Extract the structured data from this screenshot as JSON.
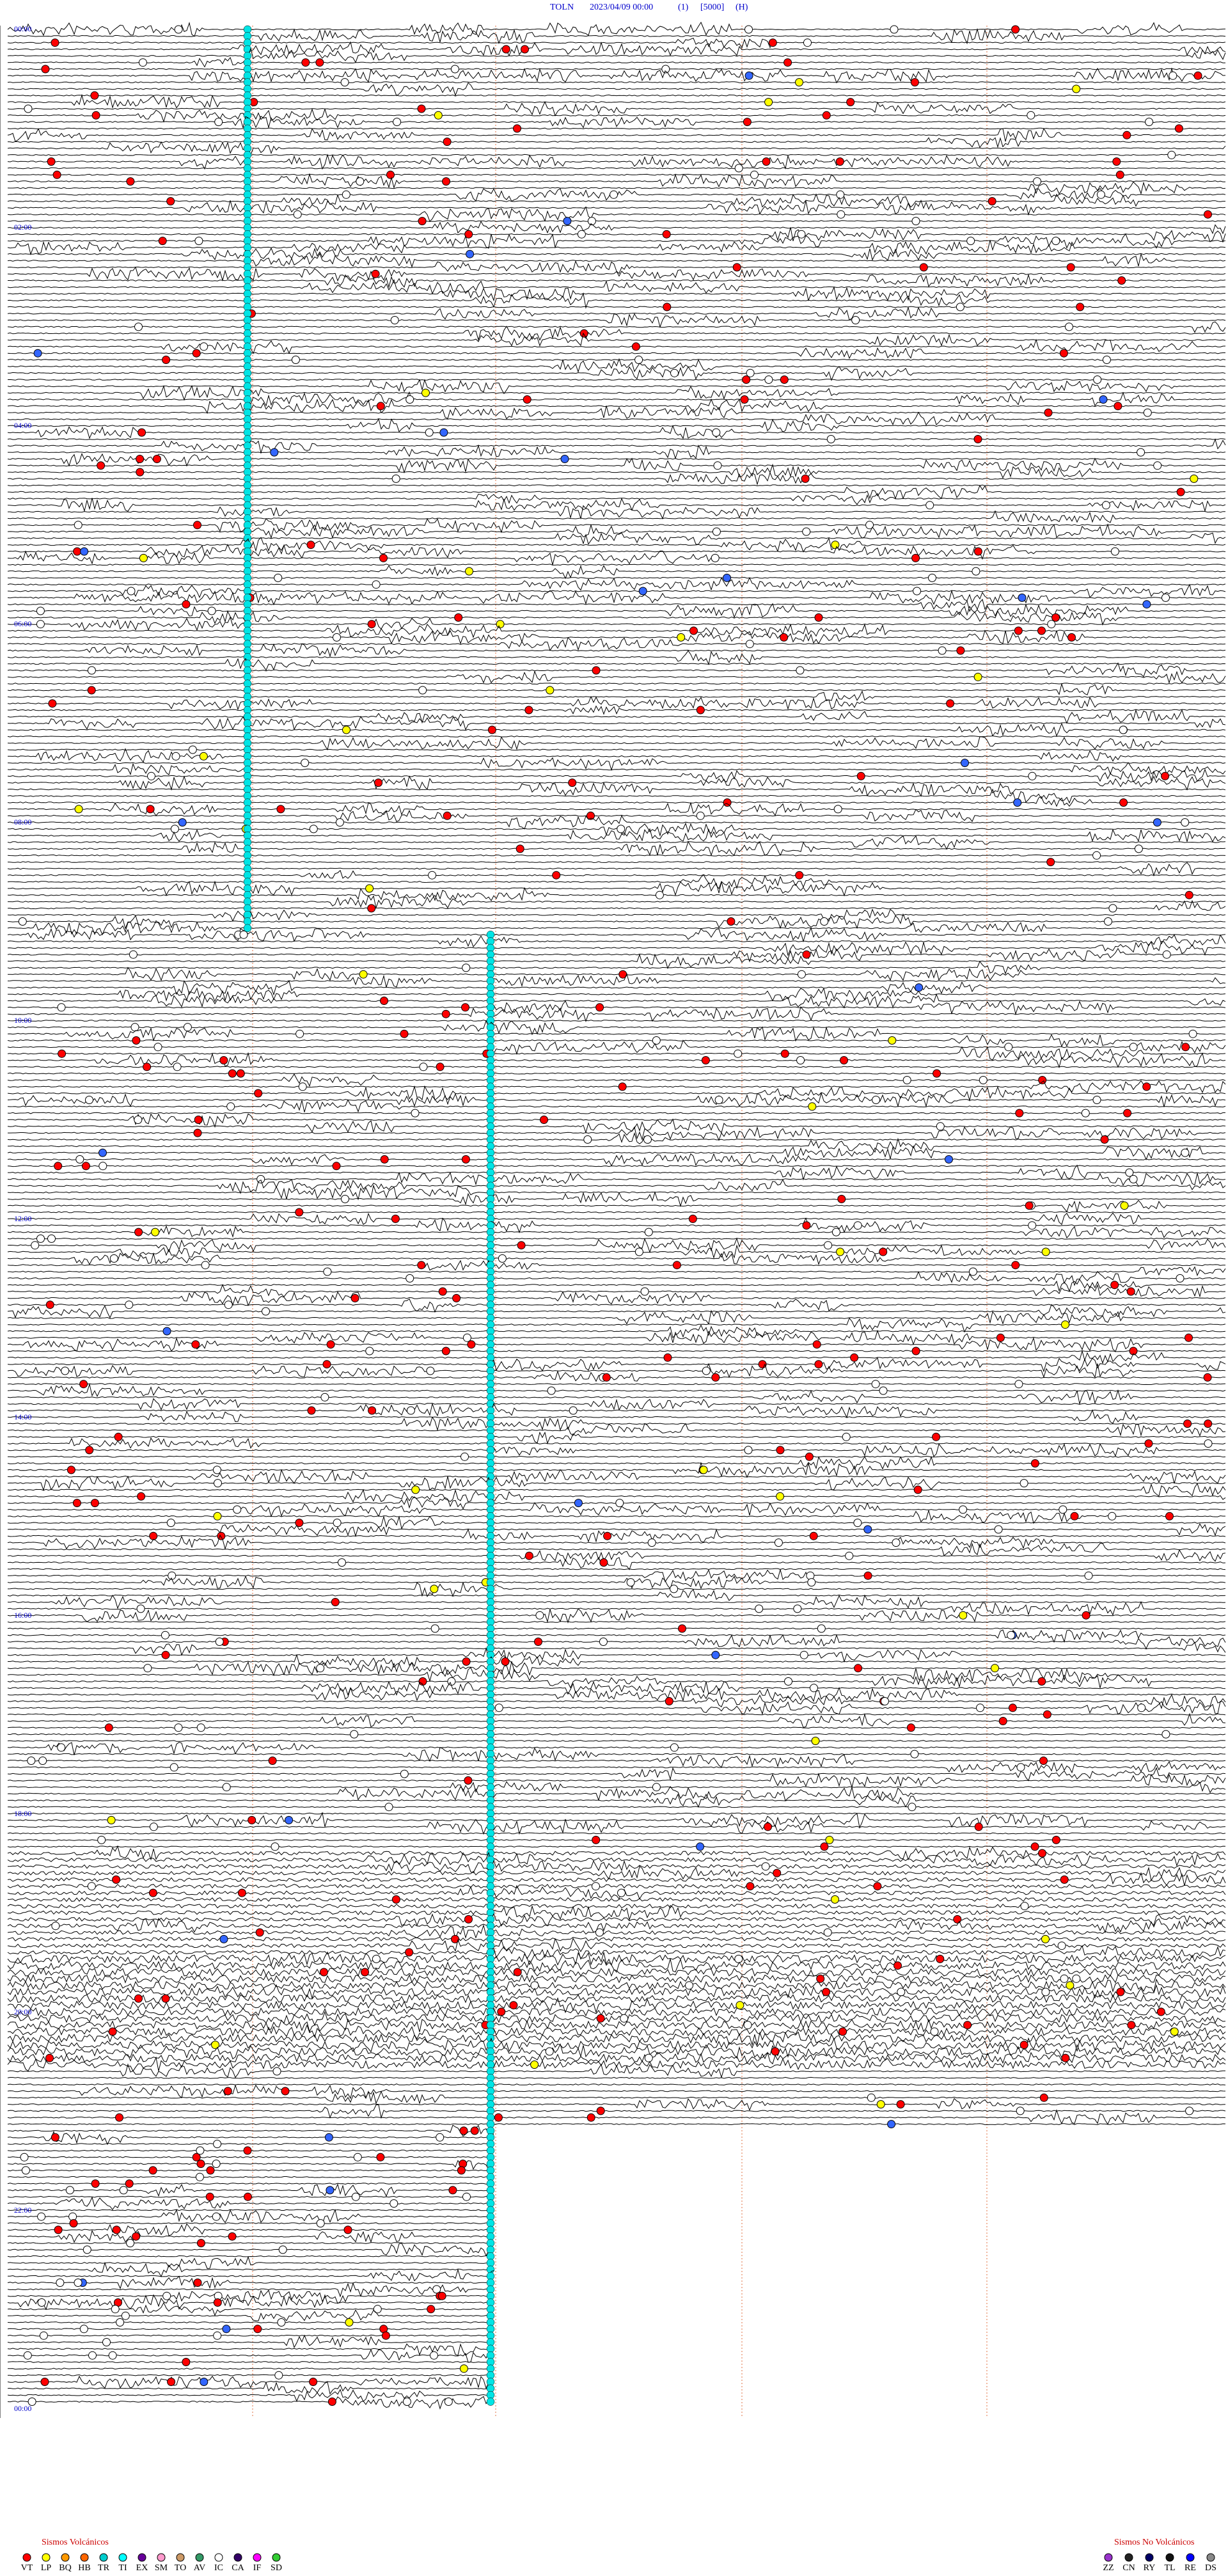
{
  "header": {
    "station": "TOLN",
    "datetime": "2023/04/09 00:00",
    "channel": "(1)",
    "scale": "[5000]",
    "component": "(H)"
  },
  "time_labels": [
    "00:00",
    "02:00",
    "04:00",
    "06:00",
    "08:00",
    "10:00",
    "12:00",
    "14:00",
    "16:00",
    "18:00",
    "20:00",
    "22:00",
    "00:00"
  ],
  "legend_volcanic": {
    "title": "Sismos Volcánicos",
    "items": [
      {
        "code": "VT",
        "color": "#ff0000"
      },
      {
        "code": "LP",
        "color": "#ffff00"
      },
      {
        "code": "BQ",
        "color": "#ff9900"
      },
      {
        "code": "HB",
        "color": "#ff6600"
      },
      {
        "code": "TR",
        "color": "#00cccc"
      },
      {
        "code": "TI",
        "color": "#00ffff"
      },
      {
        "code": "EX",
        "color": "#660099"
      },
      {
        "code": "SM",
        "color": "#ff99cc"
      },
      {
        "code": "TO",
        "color": "#cc9966"
      },
      {
        "code": "AV",
        "color": "#339966"
      },
      {
        "code": "IC",
        "color": "#ffffff"
      },
      {
        "code": "CA",
        "color": "#330066"
      },
      {
        "code": "IF",
        "color": "#ff00ff"
      },
      {
        "code": "SD",
        "color": "#33cc33"
      }
    ]
  },
  "legend_non_volcanic": {
    "title": "Sismos No Volcánicos",
    "items": [
      {
        "code": "ZZ",
        "color": "#9933cc"
      },
      {
        "code": "CN",
        "color": "#222222"
      },
      {
        "code": "RY",
        "color": "#000066"
      },
      {
        "code": "TL",
        "color": "#111111"
      },
      {
        "code": "RE",
        "color": "#0000ff"
      },
      {
        "code": "DS",
        "color": "#888888"
      }
    ]
  }
}
